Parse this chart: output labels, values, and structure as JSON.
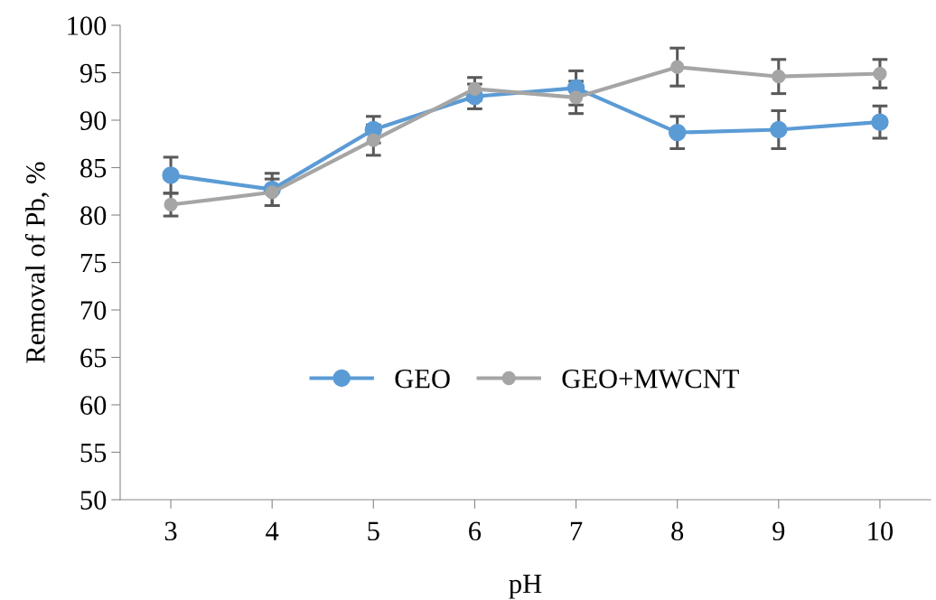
{
  "chart_data": {
    "type": "line",
    "xlabel": "pH",
    "ylabel": "Removal of Pb, %",
    "categories": [
      "3",
      "4",
      "5",
      "6",
      "7",
      "8",
      "9",
      "10"
    ],
    "ylim": [
      50,
      100
    ],
    "yticks": [
      50,
      55,
      60,
      65,
      70,
      75,
      80,
      85,
      90,
      95,
      100
    ],
    "grid": false,
    "legend": "center",
    "marker": "circle",
    "line_style": "solid",
    "series": [
      {
        "name": "GEO",
        "color": "#5b9bd5",
        "values": [
          84.2,
          82.7,
          89.0,
          92.5,
          93.4,
          88.7,
          89.0,
          89.8
        ],
        "errors": [
          1.9,
          1.7,
          1.4,
          1.3,
          1.8,
          1.7,
          2.0,
          1.7
        ]
      },
      {
        "name": "GEO+MWCNT",
        "color": "#a5a5a5",
        "values": [
          81.1,
          82.4,
          87.9,
          93.3,
          92.4,
          95.6,
          94.6,
          94.9
        ],
        "errors": [
          1.2,
          1.4,
          1.6,
          1.2,
          1.7,
          2.0,
          1.8,
          1.5
        ]
      }
    ]
  }
}
